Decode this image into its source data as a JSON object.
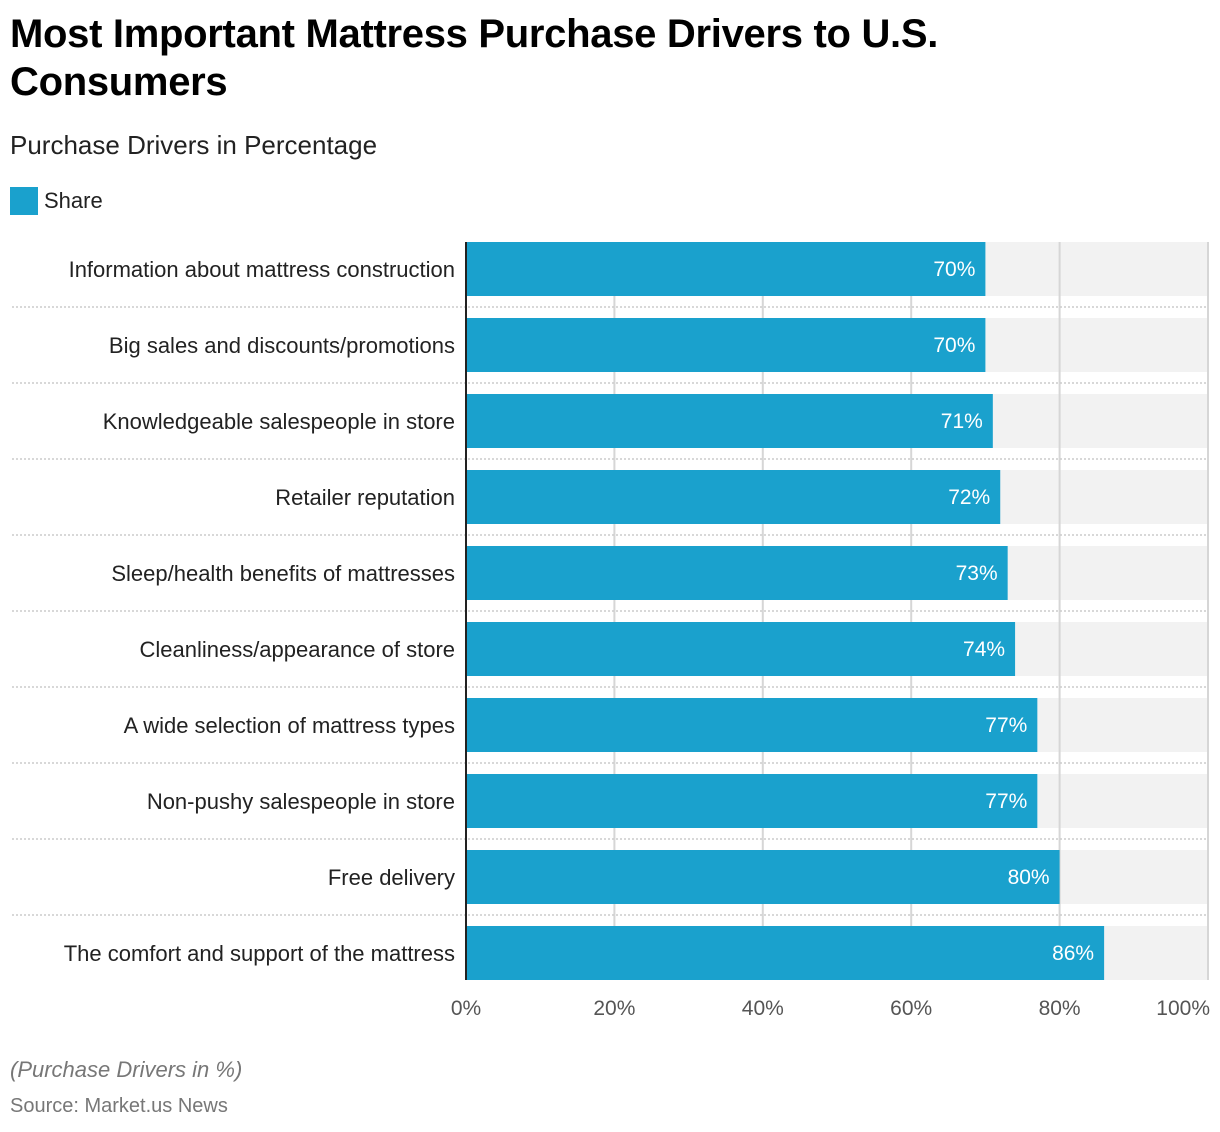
{
  "header": {
    "title": "Most Important Mattress Purchase Drivers to U.S. Consumers",
    "subtitle": "Purchase Drivers in Percentage"
  },
  "legend": {
    "items": [
      {
        "label": "Share",
        "color": "#1aa1cd"
      }
    ]
  },
  "footer": {
    "note": "(Purchase Drivers in %)",
    "source": "Source: Market.us News"
  },
  "colors": {
    "bar": "#1aa1cd",
    "track": "#f2f2f2",
    "grid": "#d6d6d6",
    "axis": "#222222",
    "separator": "#cccccc"
  },
  "chart_data": {
    "type": "bar",
    "orientation": "horizontal",
    "title": "Most Important Mattress Purchase Drivers to U.S. Consumers",
    "subtitle": "Purchase Drivers in Percentage",
    "xlabel": "",
    "ylabel": "",
    "xlim": [
      0,
      100
    ],
    "x_ticks": [
      "0%",
      "20%",
      "40%",
      "60%",
      "80%",
      "100%"
    ],
    "x_tick_values": [
      0,
      20,
      40,
      60,
      80,
      100
    ],
    "grid": true,
    "legend_position": "top-left",
    "categories": [
      "Information about mattress construction",
      "Big sales and discounts/promotions",
      "Knowledgeable salespeople in store",
      "Retailer reputation",
      "Sleep/health benefits of mattresses",
      "Cleanliness/appearance of store",
      "A wide selection of mattress types",
      "Non-pushy salespeople in store",
      "Free delivery",
      "The comfort and support of the mattress"
    ],
    "series": [
      {
        "name": "Share",
        "values": [
          70,
          70,
          71,
          72,
          73,
          74,
          77,
          77,
          80,
          86
        ],
        "labels": [
          "70%",
          "70%",
          "71%",
          "72%",
          "73%",
          "74%",
          "77%",
          "77%",
          "80%",
          "86%"
        ]
      }
    ]
  }
}
